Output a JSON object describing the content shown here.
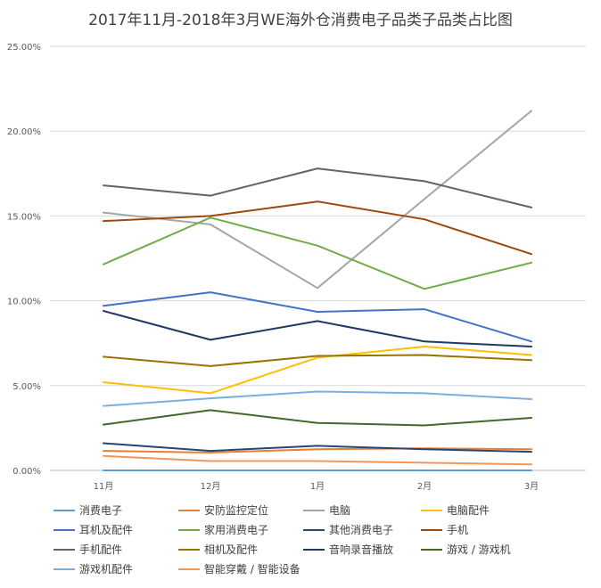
{
  "chart_data": {
    "type": "line",
    "title": "2017年11月-2018年3月WE海外仓消费电子品类子品类占比图",
    "xlabel": "",
    "ylabel": "",
    "categories": [
      "11月",
      "12月",
      "1月",
      "2月",
      "3月"
    ],
    "ylim": [
      0,
      25
    ],
    "yticks": [
      "0.00%",
      "5.00%",
      "10.00%",
      "15.00%",
      "20.00%",
      "25.00%"
    ],
    "grid": true,
    "legend_position": "bottom",
    "series": [
      {
        "name": "消费电子",
        "color": "#5B9BD5",
        "values": [
          0.0,
          0.0,
          0.0,
          0.0,
          0.0
        ]
      },
      {
        "name": "安防监控定位",
        "color": "#ED7D31",
        "values": [
          1.15,
          1.05,
          1.25,
          1.3,
          1.25
        ]
      },
      {
        "name": "电脑",
        "color": "#A5A5A5",
        "values": [
          15.2,
          14.5,
          10.75,
          16.0,
          21.2
        ]
      },
      {
        "name": "电脑配件",
        "color": "#FFC000",
        "values": [
          5.2,
          4.55,
          6.65,
          7.3,
          6.8
        ]
      },
      {
        "name": "耳机及配件",
        "color": "#4472C4",
        "values": [
          9.7,
          10.5,
          9.35,
          9.5,
          7.6
        ]
      },
      {
        "name": "家用消费电子",
        "color": "#70AD47",
        "values": [
          12.15,
          14.9,
          13.25,
          10.7,
          12.25
        ]
      },
      {
        "name": "其他消费电子",
        "color": "#264478",
        "values": [
          1.6,
          1.15,
          1.45,
          1.25,
          1.1
        ]
      },
      {
        "name": "手机",
        "color": "#9E480E",
        "values": [
          14.7,
          15.0,
          15.85,
          14.8,
          12.75
        ]
      },
      {
        "name": "手机配件",
        "color": "#636363",
        "values": [
          16.8,
          16.2,
          17.8,
          17.05,
          15.5
        ]
      },
      {
        "name": "相机及配件",
        "color": "#997300",
        "values": [
          6.7,
          6.15,
          6.75,
          6.8,
          6.5
        ]
      },
      {
        "name": "音响录音播放",
        "color": "#1F3864",
        "values": [
          9.4,
          7.7,
          8.8,
          7.6,
          7.3
        ]
      },
      {
        "name": "游戏 / 游戏机",
        "color": "#43682B",
        "values": [
          2.7,
          3.55,
          2.8,
          2.65,
          3.1
        ]
      },
      {
        "name": "游戏机配件",
        "color": "#7CAFDD",
        "values": [
          3.8,
          4.25,
          4.65,
          4.55,
          4.2
        ]
      },
      {
        "name": "智能穿戴 / 智能设备",
        "color": "#F1975A",
        "values": [
          0.85,
          0.55,
          0.55,
          0.45,
          0.35
        ]
      }
    ]
  }
}
